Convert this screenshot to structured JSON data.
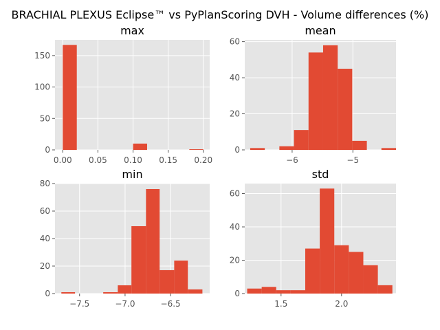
{
  "figure": {
    "suptitle": "BRACHIAL PLEXUS Eclipse™ vs PyPlanScoring DVH - Volume differences (%)"
  },
  "chart_data": [
    {
      "type": "histogram",
      "title": "max",
      "xlim": [
        -0.011,
        0.209
      ],
      "ylim": [
        0,
        175
      ],
      "xticks": [
        0.0,
        0.05,
        0.1,
        0.15,
        0.2
      ],
      "xtick_labels": [
        "0.00",
        "0.05",
        "0.10",
        "0.15",
        "0.20"
      ],
      "yticks": [
        0,
        50,
        100,
        150
      ],
      "ytick_labels": [
        "0",
        "50",
        "100",
        "150"
      ],
      "bin_edges": [
        0.0,
        0.02,
        0.04,
        0.06,
        0.08,
        0.1,
        0.12,
        0.14,
        0.16,
        0.18,
        0.2
      ],
      "counts": [
        167,
        0,
        0,
        0,
        0,
        10,
        0,
        0,
        0,
        1
      ],
      "grid": true,
      "color": "#e24a33"
    },
    {
      "type": "histogram",
      "title": "mean",
      "xlim": [
        -6.78,
        -4.29
      ],
      "ylim": [
        0,
        61
      ],
      "xticks": [
        -6,
        -5
      ],
      "xtick_labels": [
        "−6",
        "−5"
      ],
      "yticks": [
        0,
        20,
        40,
        60
      ],
      "ytick_labels": [
        "0",
        "20",
        "40",
        "60"
      ],
      "bin_edges": [
        -6.69,
        -6.45,
        -6.21,
        -5.97,
        -5.73,
        -5.49,
        -5.25,
        -5.01,
        -4.77,
        -4.53,
        -4.29
      ],
      "counts": [
        1,
        0,
        2,
        11,
        54,
        58,
        45,
        5,
        0,
        1
      ],
      "grid": true,
      "color": "#e24a33"
    },
    {
      "type": "histogram",
      "title": "min",
      "xlim": [
        -7.77,
        -6.07
      ],
      "ylim": [
        0,
        80
      ],
      "xticks": [
        -7.5,
        -7.0,
        -6.5
      ],
      "xtick_labels": [
        "−7.5",
        "−7.0",
        "−6.5"
      ],
      "yticks": [
        0,
        20,
        40,
        60,
        80
      ],
      "ytick_labels": [
        "0",
        "20",
        "40",
        "60",
        "80"
      ],
      "bin_edges": [
        -7.7,
        -7.55,
        -7.39,
        -7.24,
        -7.08,
        -6.93,
        -6.77,
        -6.62,
        -6.46,
        -6.31,
        -6.15
      ],
      "counts": [
        1,
        0,
        0,
        1,
        6,
        49,
        76,
        17,
        24,
        3
      ],
      "grid": true,
      "color": "#e24a33"
    },
    {
      "type": "histogram",
      "title": "std",
      "xlim": [
        1.2,
        2.45
      ],
      "ylim": [
        0,
        66
      ],
      "xticks": [
        1.5,
        2.0
      ],
      "xtick_labels": [
        "1.5",
        "2.0"
      ],
      "yticks": [
        0,
        20,
        40,
        60
      ],
      "ytick_labels": [
        "0",
        "20",
        "40",
        "60"
      ],
      "bin_edges": [
        1.22,
        1.34,
        1.46,
        1.58,
        1.7,
        1.82,
        1.94,
        2.06,
        2.18,
        2.3,
        2.42
      ],
      "counts": [
        3,
        4,
        2,
        2,
        27,
        63,
        29,
        25,
        17,
        5
      ],
      "grid": true,
      "color": "#e24a33"
    }
  ]
}
